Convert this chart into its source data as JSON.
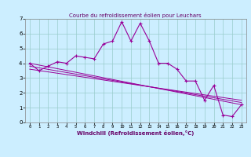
{
  "title": "Courbe du refroidissement éolien pour Leuchars",
  "xlabel": "Windchill (Refroidissement éolien,°C)",
  "bg_color": "#cceeff",
  "line_color": "#990099",
  "grid_color": "#99cccc",
  "xlim": [
    -0.5,
    23.5
  ],
  "ylim": [
    0,
    7
  ],
  "xticks": [
    0,
    1,
    2,
    3,
    4,
    5,
    6,
    7,
    8,
    9,
    10,
    11,
    12,
    13,
    14,
    15,
    16,
    17,
    18,
    19,
    20,
    21,
    22,
    23
  ],
  "yticks": [
    0,
    1,
    2,
    3,
    4,
    5,
    6,
    7
  ],
  "series1_x": [
    0,
    1,
    2,
    3,
    4,
    5,
    6,
    7,
    8,
    9,
    10,
    11,
    12,
    13,
    14,
    15,
    16,
    17,
    18,
    19,
    20,
    21,
    22,
    23
  ],
  "series1_y": [
    4.0,
    3.5,
    3.8,
    4.1,
    4.0,
    4.5,
    4.4,
    4.3,
    5.3,
    5.5,
    6.8,
    5.5,
    6.7,
    5.5,
    4.0,
    4.0,
    3.6,
    2.8,
    2.8,
    1.5,
    2.5,
    0.5,
    0.4,
    1.2
  ],
  "series2_x": [
    0,
    23
  ],
  "series2_y": [
    4.0,
    1.2
  ],
  "series3_x": [
    0,
    23
  ],
  "series3_y": [
    3.8,
    1.35
  ],
  "series4_x": [
    0,
    23
  ],
  "series4_y": [
    3.6,
    1.5
  ]
}
